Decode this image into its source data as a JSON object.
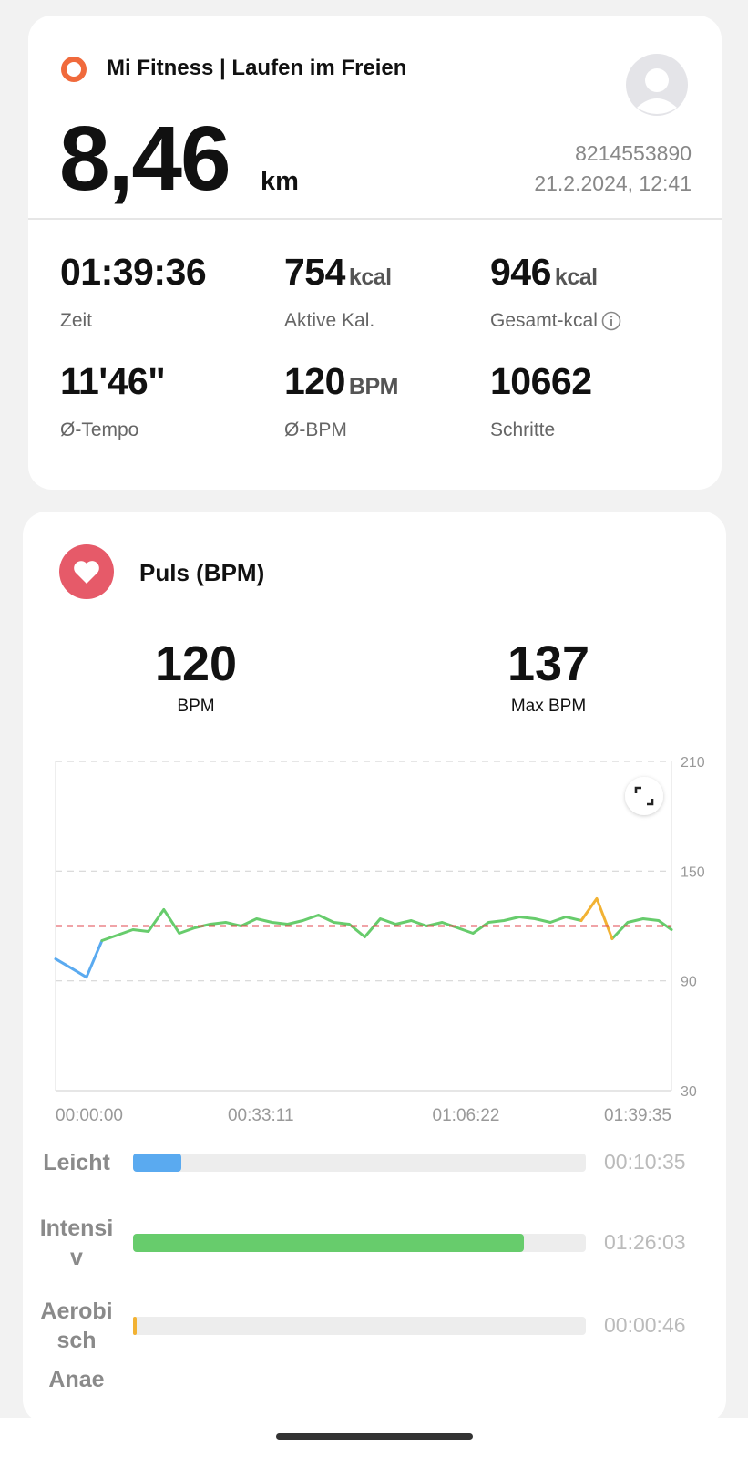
{
  "header": {
    "app": "Mi Fitness | Laufen im Freien",
    "distance": "8,46",
    "distance_unit": "km",
    "user_id": "8214553890",
    "datetime": "21.2.2024, 12:41"
  },
  "stats": [
    {
      "value": "01:39:36",
      "label": "Zeit"
    },
    {
      "value": "754",
      "unit": "kcal",
      "label": "Aktive Kal."
    },
    {
      "value": "946",
      "unit": "kcal",
      "label": "Gesamt-kcal",
      "info": true
    },
    {
      "value": "11'46\"",
      "label": "Ø-Tempo"
    },
    {
      "value": "120",
      "unit": "BPM",
      "label": "Ø-BPM"
    },
    {
      "value": "10662",
      "label": "Schritte"
    }
  ],
  "pulse": {
    "title": "Puls (BPM)",
    "summary": [
      {
        "value": "120",
        "label": "BPM"
      },
      {
        "value": "137",
        "label": "Max BPM"
      }
    ],
    "chart": {
      "type": "line",
      "x": [
        0,
        150,
        300,
        450,
        600,
        750,
        900,
        1050,
        1200,
        1350,
        1500,
        1650,
        1800,
        1950,
        2100,
        2250,
        2400,
        2550,
        2700,
        2850,
        3000,
        3150,
        3300,
        3450,
        3600,
        3750,
        3900,
        4050,
        4200,
        4350,
        4500,
        4650,
        4800,
        4950,
        5100,
        5250,
        5400,
        5550,
        5700,
        5850,
        5975
      ],
      "series": [
        {
          "color": "#5aaaf0",
          "values": [
            102,
            97,
            92,
            112,
            null,
            null,
            null,
            null,
            null,
            null,
            null,
            null,
            null,
            null,
            null,
            null,
            null,
            null,
            null,
            null,
            null,
            null,
            null,
            null,
            null,
            null,
            null,
            null,
            null,
            null,
            null,
            null,
            null,
            null,
            null,
            null,
            null,
            null,
            null,
            null,
            null
          ]
        },
        {
          "color": "#67cc6c",
          "values": [
            null,
            null,
            null,
            112,
            115,
            118,
            117,
            129,
            116,
            119,
            121,
            122,
            120,
            124,
            122,
            121,
            123,
            126,
            122,
            121,
            114,
            124,
            121,
            123,
            120,
            122,
            119,
            116,
            122,
            123,
            125,
            124,
            122,
            125,
            123,
            null,
            113,
            122,
            124,
            123,
            118
          ]
        },
        {
          "color": "#f2b233",
          "values": [
            null,
            null,
            null,
            null,
            null,
            null,
            null,
            null,
            null,
            null,
            null,
            null,
            null,
            null,
            null,
            null,
            null,
            null,
            null,
            null,
            null,
            null,
            null,
            null,
            null,
            null,
            null,
            null,
            null,
            null,
            null,
            null,
            null,
            null,
            123,
            135,
            113,
            null,
            null,
            null,
            null
          ]
        }
      ],
      "average": 120,
      "average_color": "#e0474f",
      "xlim": [
        0,
        5975
      ],
      "xticks": [
        {
          "value": 0,
          "label": "00:00:00"
        },
        {
          "value": 1991,
          "label": "00:33:11"
        },
        {
          "value": 3982,
          "label": "01:06:22"
        },
        {
          "value": 5975,
          "label": "01:39:35"
        }
      ],
      "ylim": [
        30,
        210
      ],
      "yticks": [
        30,
        90,
        150,
        210
      ],
      "grid": true
    },
    "zones": [
      {
        "label": "Leicht",
        "color": "#5aaaf0",
        "duration": {
          "value": 635,
          "label": "00:10:35"
        }
      },
      {
        "label": "Intensiv",
        "color": "#67cc6c",
        "duration": {
          "value": 5163,
          "label": "01:26:03"
        }
      },
      {
        "label": "Aerobisch",
        "color": "#f2b233",
        "duration": {
          "value": 46,
          "label": "00:00:46"
        }
      },
      {
        "label": "Anae"
      }
    ]
  }
}
